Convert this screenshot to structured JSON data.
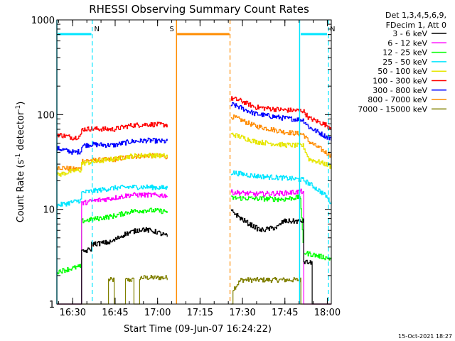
{
  "chart_data": {
    "type": "line",
    "title": "RHESSI Observing Summary Count Rates",
    "xlabel": "Start Time (09-Jun-07 16:24:22)",
    "ylabel": "Count Rate (s",
    "ylabel_sup1": "-1",
    "ylabel_mid": " detector",
    "ylabel_sup2": "-1",
    "ylabel_end": ")",
    "x_unit": "minutes after 16:24:22 on 09-Jun-07",
    "xlim": [
      0,
      97
    ],
    "ylim": [
      1,
      1000
    ],
    "yscale": "log",
    "x_ticks": [
      {
        "label": "16:30",
        "min": 5.6
      },
      {
        "label": "16:45",
        "min": 20.6
      },
      {
        "label": "17:00",
        "min": 35.6
      },
      {
        "label": "17:15",
        "min": 50.6
      },
      {
        "label": "17:30",
        "min": 65.6
      },
      {
        "label": "17:45",
        "min": 80.6
      },
      {
        "label": "18:00",
        "min": 95.6
      }
    ],
    "y_ticks": [
      {
        "label": "1",
        "v": 1
      },
      {
        "label": "10",
        "v": 10
      },
      {
        "label": "100",
        "v": 100
      },
      {
        "label": "1000",
        "v": 1000
      }
    ],
    "legend": {
      "header1": "Det 1,3,4,5,6,9,",
      "header2": "FDecim 1, Att 0",
      "placement": "right"
    },
    "markers": [
      {
        "label": "N",
        "color": "#00e5ff",
        "solid": 0,
        "dashed": 12.5,
        "bar": [
          0.3,
          12.2
        ]
      },
      {
        "label": "N",
        "color": "#00e5ff",
        "solid": 85.8,
        "dashed": 96.0,
        "bar": [
          86.2,
          95.5
        ]
      },
      {
        "label": "S",
        "color": "#ff8c00",
        "solid": 42.3,
        "dashed": 61.2,
        "bar": [
          42.5,
          61.0
        ]
      }
    ],
    "gaps": [
      [
        39.2,
        61.5
      ]
    ],
    "series": [
      {
        "name": "3 - 6 keV",
        "color": "#000000",
        "points": [
          [
            0,
            1
          ],
          [
            8.5,
            1
          ],
          [
            8.5,
            3.5
          ],
          [
            12.0,
            3.8
          ],
          [
            12.0,
            4.3
          ],
          [
            19,
            4.5
          ],
          [
            24,
            5.5
          ],
          [
            30,
            6.2
          ],
          [
            35,
            5.8
          ],
          [
            39,
            5.2
          ],
          [
            62,
            9.5
          ],
          [
            65,
            8.0
          ],
          [
            68,
            7.0
          ],
          [
            72,
            6.0
          ],
          [
            78,
            6.5
          ],
          [
            80,
            7.5
          ],
          [
            84,
            7.5
          ],
          [
            87,
            7.5
          ],
          [
            87.2,
            2.8
          ],
          [
            90,
            2.7
          ],
          [
            90,
            1
          ],
          [
            97,
            1
          ]
        ]
      },
      {
        "name": "6 - 12 keV",
        "color": "#ff00ff",
        "points": [
          [
            0,
            1
          ],
          [
            8.5,
            1
          ],
          [
            8.5,
            11.5
          ],
          [
            12,
            12.2
          ],
          [
            20,
            13.2
          ],
          [
            26,
            14.2
          ],
          [
            32,
            14.2
          ],
          [
            39,
            14.0
          ],
          [
            62,
            15.2
          ],
          [
            70,
            14.5
          ],
          [
            80,
            14.8
          ],
          [
            87,
            15.5
          ],
          [
            87.2,
            1
          ],
          [
            97,
            1
          ]
        ]
      },
      {
        "name": "12 - 25 keV",
        "color": "#00ff00",
        "points": [
          [
            0,
            2.2
          ],
          [
            8.5,
            2.5
          ],
          [
            8.5,
            7.5
          ],
          [
            12,
            7.8
          ],
          [
            20,
            8.5
          ],
          [
            26,
            9.5
          ],
          [
            32,
            9.8
          ],
          [
            39,
            9.5
          ],
          [
            62,
            13.2
          ],
          [
            70,
            13.0
          ],
          [
            80,
            12.8
          ],
          [
            86,
            13.5
          ],
          [
            87.2,
            3.5
          ],
          [
            97,
            3.0
          ]
        ]
      },
      {
        "name": "25 - 50 keV",
        "color": "#00e5ff",
        "points": [
          [
            0,
            11.0
          ],
          [
            6,
            12.0
          ],
          [
            8.5,
            12.5
          ],
          [
            8.5,
            15.0
          ],
          [
            12,
            15.5
          ],
          [
            20,
            16.8
          ],
          [
            26,
            17.2
          ],
          [
            32,
            17.2
          ],
          [
            39,
            16.8
          ],
          [
            62,
            24.5
          ],
          [
            70,
            22.5
          ],
          [
            80,
            21.5
          ],
          [
            87,
            20.5
          ],
          [
            90,
            18.0
          ],
          [
            95,
            14.0
          ],
          [
            97,
            11.5
          ]
        ]
      },
      {
        "name": "50 - 100 keV",
        "color": "#e6e600",
        "points": [
          [
            0,
            23.0
          ],
          [
            6,
            25.5
          ],
          [
            8.5,
            26.0
          ],
          [
            8.5,
            30.5
          ],
          [
            12,
            31.5
          ],
          [
            20,
            34.0
          ],
          [
            26,
            36.5
          ],
          [
            32,
            37.5
          ],
          [
            39,
            36.5
          ],
          [
            62,
            62.0
          ],
          [
            70,
            52.0
          ],
          [
            80,
            48.0
          ],
          [
            87,
            47.0
          ],
          [
            89,
            34.0
          ],
          [
            95,
            30.0
          ],
          [
            97,
            28.0
          ]
        ]
      },
      {
        "name": "100 - 300 keV",
        "color": "#ff0000",
        "points": [
          [
            0,
            62.0
          ],
          [
            6,
            57.0
          ],
          [
            8.5,
            60.0
          ],
          [
            8.5,
            70.0
          ],
          [
            12,
            71.0
          ],
          [
            20,
            70.0
          ],
          [
            26,
            77.0
          ],
          [
            32,
            79.0
          ],
          [
            39,
            78.0
          ],
          [
            62,
            148.0
          ],
          [
            65,
            140.0
          ],
          [
            70,
            120.0
          ],
          [
            80,
            112.0
          ],
          [
            87,
            110.0
          ],
          [
            89,
            92.0
          ],
          [
            95,
            78.0
          ],
          [
            97,
            73.0
          ]
        ]
      },
      {
        "name": "300 - 800 keV",
        "color": "#0000ff",
        "points": [
          [
            0,
            44.0
          ],
          [
            6,
            40.0
          ],
          [
            8.5,
            41.0
          ],
          [
            8.5,
            47.0
          ],
          [
            12,
            48.5
          ],
          [
            20,
            47.5
          ],
          [
            26,
            52.0
          ],
          [
            32,
            53.5
          ],
          [
            39,
            52.0
          ],
          [
            62,
            128.0
          ],
          [
            65,
            118.0
          ],
          [
            70,
            102.0
          ],
          [
            80,
            92.0
          ],
          [
            87,
            88.0
          ],
          [
            89,
            74.0
          ],
          [
            95,
            59.0
          ],
          [
            97,
            55.0
          ]
        ]
      },
      {
        "name": "800 - 7000 keV",
        "color": "#ff8c00",
        "points": [
          [
            0,
            28.0
          ],
          [
            6,
            26.5
          ],
          [
            8.5,
            27.0
          ],
          [
            8.5,
            32.5
          ],
          [
            12,
            33.0
          ],
          [
            20,
            33.5
          ],
          [
            26,
            36.0
          ],
          [
            32,
            37.0
          ],
          [
            39,
            36.0
          ],
          [
            62,
            95.0
          ],
          [
            65,
            88.0
          ],
          [
            70,
            76.0
          ],
          [
            80,
            66.0
          ],
          [
            87,
            62.0
          ],
          [
            89,
            52.0
          ],
          [
            95,
            40.0
          ],
          [
            97,
            37.0
          ]
        ]
      },
      {
        "name": "7000 - 15000 keV",
        "color": "#808000",
        "points": [
          [
            0,
            1
          ],
          [
            18,
            1
          ],
          [
            18,
            1.8
          ],
          [
            20,
            1.8
          ],
          [
            20,
            1
          ],
          [
            24,
            1
          ],
          [
            24,
            1.8
          ],
          [
            27,
            1.8
          ],
          [
            27,
            1
          ],
          [
            29,
            1
          ],
          [
            29,
            1.9
          ],
          [
            39,
            1.9
          ],
          [
            39,
            1
          ],
          [
            62,
            1
          ],
          [
            62,
            1.4
          ],
          [
            65,
            1.8
          ],
          [
            86,
            1.8
          ],
          [
            86,
            1
          ],
          [
            97,
            1
          ]
        ]
      }
    ]
  },
  "footer": {
    "timestamp": "15-Oct-2021 18:27"
  }
}
